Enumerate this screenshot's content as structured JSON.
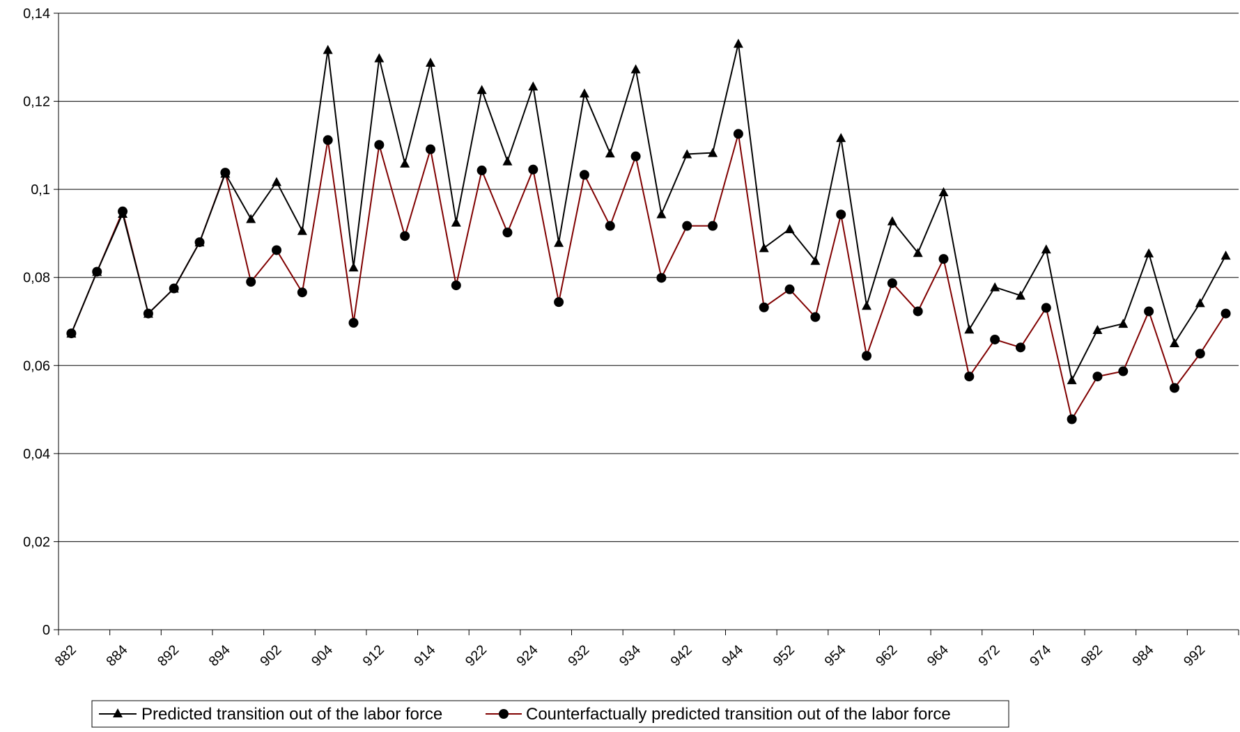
{
  "chart_data": {
    "type": "line",
    "title": "",
    "xlabel": "",
    "ylabel": "",
    "ylim": [
      0,
      0.14
    ],
    "y_ticks": [
      "0",
      "0,02",
      "0,04",
      "0,06",
      "0,08",
      "0,1",
      "0,12",
      "0,14"
    ],
    "y_tick_values": [
      0,
      0.02,
      0.04,
      0.06,
      0.08,
      0.1,
      0.12,
      0.14
    ],
    "x_tick_labels": [
      "882",
      "884",
      "892",
      "894",
      "902",
      "904",
      "912",
      "914",
      "922",
      "924",
      "932",
      "934",
      "942",
      "944",
      "952",
      "954",
      "962",
      "964",
      "972",
      "974",
      "982",
      "984",
      "992"
    ],
    "x_label_every": 2,
    "grid": "horizontal",
    "legend_position": "bottom",
    "series": [
      {
        "name": "Predicted transition out of the labor force",
        "color": "#000000",
        "marker": "triangle",
        "values": [
          0.0673,
          0.0813,
          0.0945,
          0.0718,
          0.0775,
          0.088,
          0.1036,
          0.0933,
          0.1017,
          0.0906,
          0.1317,
          0.0823,
          0.1298,
          0.1059,
          0.1288,
          0.0925,
          0.1226,
          0.1064,
          0.1234,
          0.0879,
          0.1218,
          0.1082,
          0.1273,
          0.0944,
          0.108,
          0.1083,
          0.1331,
          0.0867,
          0.091,
          0.0838,
          0.1117,
          0.0736,
          0.0928,
          0.0856,
          0.0994,
          0.0682,
          0.0778,
          0.0759,
          0.0864,
          0.0567,
          0.0681,
          0.0695,
          0.0855,
          0.0651,
          0.0742,
          0.085
        ]
      },
      {
        "name": "Counterfactually predicted transition out of the labor force",
        "color": "#800000",
        "marker": "circle",
        "values": [
          0.0673,
          0.0813,
          0.095,
          0.0718,
          0.0775,
          0.088,
          0.1038,
          0.079,
          0.0862,
          0.0766,
          0.1112,
          0.0697,
          0.1101,
          0.0894,
          0.1091,
          0.0782,
          0.1043,
          0.0902,
          0.1045,
          0.0744,
          0.1033,
          0.0917,
          0.1075,
          0.0799,
          0.0917,
          0.0917,
          0.1126,
          0.0732,
          0.0773,
          0.071,
          0.0943,
          0.0622,
          0.0787,
          0.0723,
          0.0842,
          0.0575,
          0.0659,
          0.0641,
          0.0731,
          0.0478,
          0.0575,
          0.0587,
          0.0723,
          0.0549,
          0.0627,
          0.0718
        ]
      }
    ]
  }
}
